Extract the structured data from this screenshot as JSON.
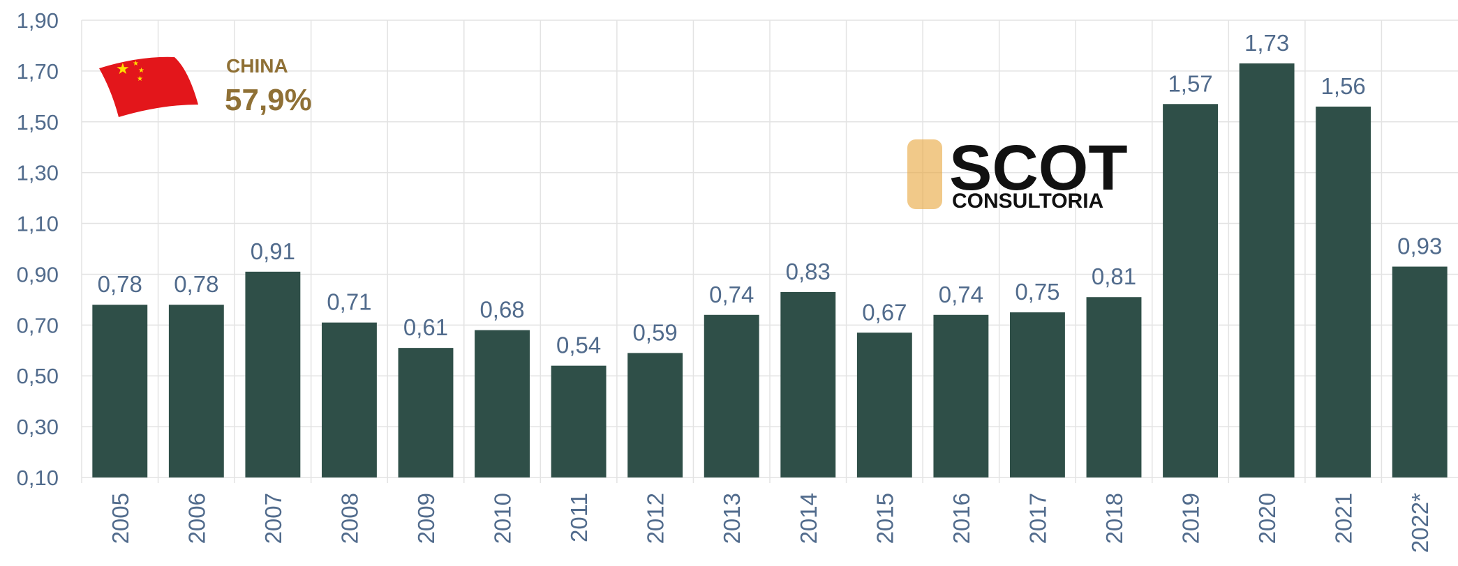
{
  "chart_data": {
    "type": "bar",
    "categories": [
      "2005",
      "2006",
      "2007",
      "2008",
      "2009",
      "2010",
      "2011",
      "2012",
      "2013",
      "2014",
      "2015",
      "2016",
      "2017",
      "2018",
      "2019",
      "2020",
      "2021",
      "2022*"
    ],
    "values": [
      0.78,
      0.78,
      0.91,
      0.71,
      0.61,
      0.68,
      0.54,
      0.59,
      0.74,
      0.83,
      0.67,
      0.74,
      0.75,
      0.81,
      1.57,
      1.73,
      1.56,
      0.93
    ],
    "value_labels": [
      "0,78",
      "0,78",
      "0,91",
      "0,71",
      "0,61",
      "0,68",
      "0,54",
      "0,59",
      "0,74",
      "0,83",
      "0,67",
      "0,74",
      "0,75",
      "0,81",
      "1,57",
      "1,73",
      "1,56",
      "0,93"
    ],
    "color": "#2f4f48",
    "ylim": [
      0.1,
      1.9
    ],
    "yticks": [
      {
        "value": 0.1,
        "label": "0,10"
      },
      {
        "value": 0.3,
        "label": "0,30"
      },
      {
        "value": 0.5,
        "label": "0,50"
      },
      {
        "value": 0.7,
        "label": "0,70"
      },
      {
        "value": 0.9,
        "label": "0,90"
      },
      {
        "value": 1.1,
        "label": "1,10"
      },
      {
        "value": 1.3,
        "label": "1,30"
      },
      {
        "value": 1.5,
        "label": "1,50"
      },
      {
        "value": 1.7,
        "label": "1,70"
      },
      {
        "value": 1.9,
        "label": "1,90"
      }
    ],
    "grid": true,
    "annotations": {
      "country": "CHINA",
      "share": "57,9%",
      "logo_main": "SCOT",
      "logo_sub": "CONSULTORIA"
    }
  }
}
